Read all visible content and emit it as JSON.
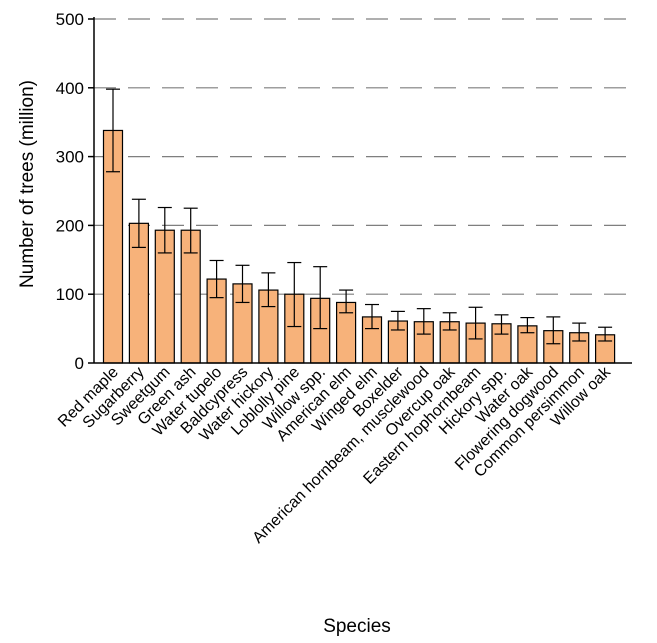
{
  "chart_data": {
    "type": "bar",
    "xlabel": "Species",
    "ylabel": "Number of trees (million)",
    "ylim": [
      0,
      500
    ],
    "yticks": [
      0,
      100,
      200,
      300,
      400,
      500
    ],
    "ytick_labels": [
      "0",
      "100",
      "200",
      "300",
      "400",
      "500"
    ],
    "grid": "horizontal dashed",
    "categories": [
      "Red maple",
      "Sugarberry",
      "Sweetgum",
      "Green ash",
      "Water tupelo",
      "Baldcypress",
      "Water hickory",
      "Loblolly pine",
      "Willow spp.",
      "American elm",
      "Winged elm",
      "Boxelder",
      "American hornbeam, musclewood",
      "Overcup oak",
      "Eastern hophornbeam",
      "Hickory spp.",
      "Water oak",
      "Flowering dogwood",
      "Common persimmon",
      "Willow oak"
    ],
    "values": [
      338,
      203,
      193,
      193,
      122,
      115,
      106,
      100,
      94,
      88,
      67,
      61,
      60,
      60,
      58,
      57,
      54,
      47,
      44,
      41
    ],
    "error_low": [
      278,
      168,
      160,
      160,
      95,
      88,
      82,
      53,
      50,
      73,
      50,
      48,
      42,
      48,
      35,
      42,
      44,
      28,
      32,
      32
    ],
    "error_high": [
      398,
      238,
      226,
      225,
      149,
      142,
      131,
      146,
      140,
      106,
      85,
      75,
      79,
      73,
      81,
      70,
      66,
      67,
      58,
      52
    ],
    "colors": {
      "bar_fill": "#f7b27a",
      "bar_stroke": "#000000",
      "grid": "#7f7f7f"
    }
  }
}
